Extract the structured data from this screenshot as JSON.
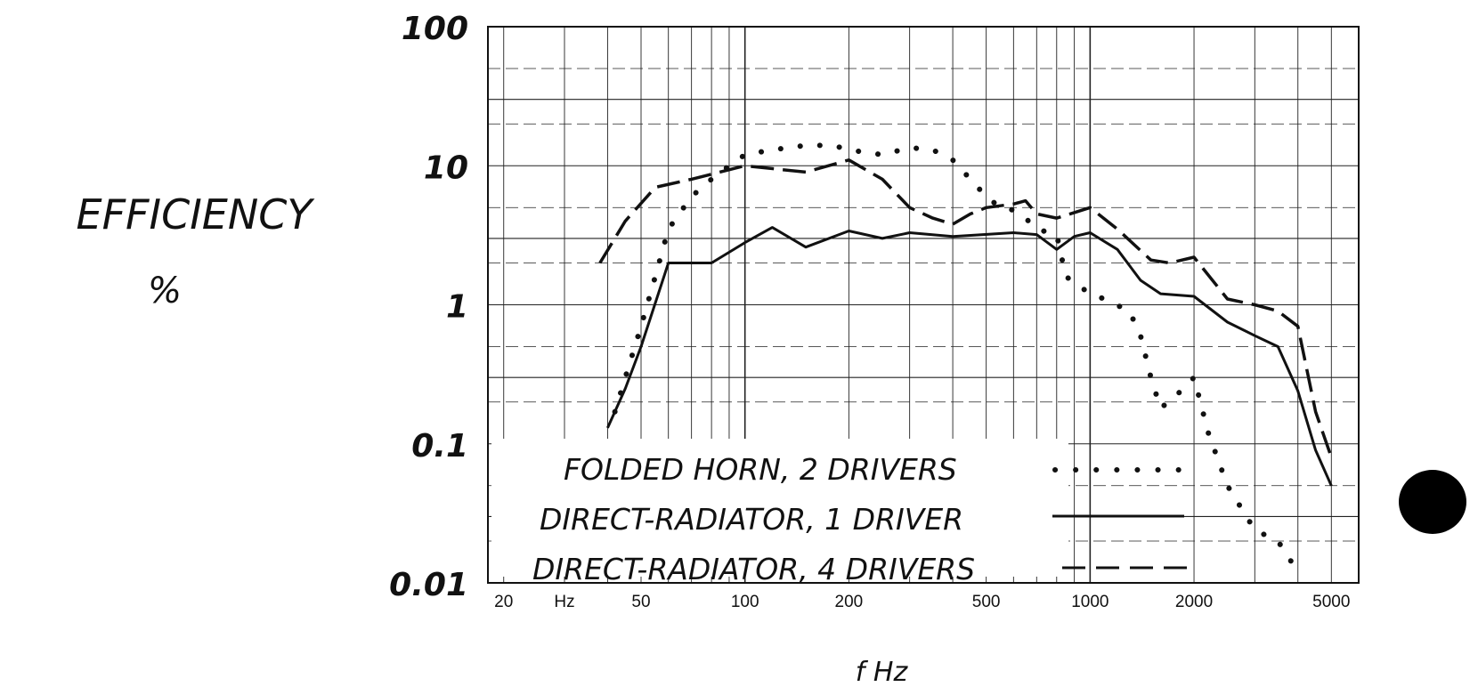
{
  "chart_data": {
    "type": "line",
    "xlabel": "f Hz",
    "ylabel": "EFFICIENCY",
    "ylabel_unit": "%",
    "x_scale": "log",
    "y_scale": "log",
    "xlim": [
      18,
      6000
    ],
    "ylim": [
      0.01,
      100
    ],
    "grid": true,
    "x_ticks": [
      {
        "value": 20,
        "label": "20"
      },
      {
        "value": 30,
        "label": "Hz"
      },
      {
        "value": 50,
        "label": "50"
      },
      {
        "value": 100,
        "label": "100"
      },
      {
        "value": 200,
        "label": "200"
      },
      {
        "value": 500,
        "label": "500"
      },
      {
        "value": 1000,
        "label": "1000"
      },
      {
        "value": 2000,
        "label": "2000"
      },
      {
        "value": 5000,
        "label": "5000"
      }
    ],
    "y_ticks": [
      {
        "value": 100,
        "label": "100"
      },
      {
        "value": 10,
        "label": "10"
      },
      {
        "value": 1,
        "label": "1"
      },
      {
        "value": 0.1,
        "label": "0.1"
      },
      {
        "value": 0.01,
        "label": "0.01"
      }
    ],
    "legend_position": "bottom-left",
    "series": [
      {
        "name": "FOLDED HORN, 2 DRIVERS",
        "style": "dotted",
        "points": [
          [
            42,
            0.17
          ],
          [
            45,
            0.3
          ],
          [
            50,
            0.7
          ],
          [
            55,
            1.6
          ],
          [
            60,
            3.5
          ],
          [
            70,
            6
          ],
          [
            80,
            8
          ],
          [
            90,
            10
          ],
          [
            100,
            12
          ],
          [
            120,
            13
          ],
          [
            150,
            14
          ],
          [
            180,
            14
          ],
          [
            200,
            13
          ],
          [
            250,
            12
          ],
          [
            300,
            13.5
          ],
          [
            350,
            13
          ],
          [
            400,
            11
          ],
          [
            450,
            8
          ],
          [
            500,
            6
          ],
          [
            550,
            5
          ],
          [
            600,
            4.8
          ],
          [
            650,
            4.2
          ],
          [
            700,
            3.5
          ],
          [
            800,
            3.2
          ],
          [
            850,
            1.6
          ],
          [
            1000,
            1.2
          ],
          [
            1100,
            1.1
          ],
          [
            1300,
            0.9
          ],
          [
            1400,
            0.6
          ],
          [
            1500,
            0.3
          ],
          [
            1600,
            0.18
          ],
          [
            1800,
            0.23
          ],
          [
            2000,
            0.3
          ],
          [
            2200,
            0.12
          ],
          [
            2500,
            0.05
          ],
          [
            3000,
            0.024
          ],
          [
            3500,
            0.02
          ],
          [
            4000,
            0.012
          ]
        ]
      },
      {
        "name": "DIRECT-RADIATOR, 1 DRIVER",
        "style": "solid",
        "points": [
          [
            40,
            0.13
          ],
          [
            45,
            0.25
          ],
          [
            50,
            0.5
          ],
          [
            60,
            2
          ],
          [
            80,
            2
          ],
          [
            100,
            2.8
          ],
          [
            120,
            3.6
          ],
          [
            150,
            2.6
          ],
          [
            200,
            3.4
          ],
          [
            250,
            3
          ],
          [
            300,
            3.3
          ],
          [
            400,
            3.1
          ],
          [
            600,
            3.3
          ],
          [
            700,
            3.2
          ],
          [
            800,
            2.5
          ],
          [
            900,
            3.1
          ],
          [
            1000,
            3.3
          ],
          [
            1200,
            2.5
          ],
          [
            1400,
            1.5
          ],
          [
            1600,
            1.2
          ],
          [
            2000,
            1.15
          ],
          [
            2500,
            0.75
          ],
          [
            3000,
            0.6
          ],
          [
            3500,
            0.5
          ],
          [
            4000,
            0.24
          ],
          [
            4500,
            0.09
          ],
          [
            5000,
            0.05
          ]
        ]
      },
      {
        "name": "DIRECT-RADIATOR, 4 DRIVERS",
        "style": "dashed",
        "points": [
          [
            38,
            2
          ],
          [
            45,
            4
          ],
          [
            55,
            7
          ],
          [
            70,
            8
          ],
          [
            100,
            10
          ],
          [
            150,
            9
          ],
          [
            200,
            11
          ],
          [
            250,
            8
          ],
          [
            300,
            5
          ],
          [
            350,
            4.2
          ],
          [
            400,
            3.8
          ],
          [
            450,
            4.5
          ],
          [
            500,
            5
          ],
          [
            600,
            5.3
          ],
          [
            650,
            5.6
          ],
          [
            700,
            4.5
          ],
          [
            800,
            4.2
          ],
          [
            1000,
            5
          ],
          [
            1200,
            3.5
          ],
          [
            1500,
            2.1
          ],
          [
            1700,
            2
          ],
          [
            2000,
            2.2
          ],
          [
            2500,
            1.1
          ],
          [
            3000,
            1
          ],
          [
            3500,
            0.9
          ],
          [
            4000,
            0.7
          ],
          [
            4500,
            0.17
          ],
          [
            5000,
            0.08
          ]
        ]
      }
    ]
  }
}
